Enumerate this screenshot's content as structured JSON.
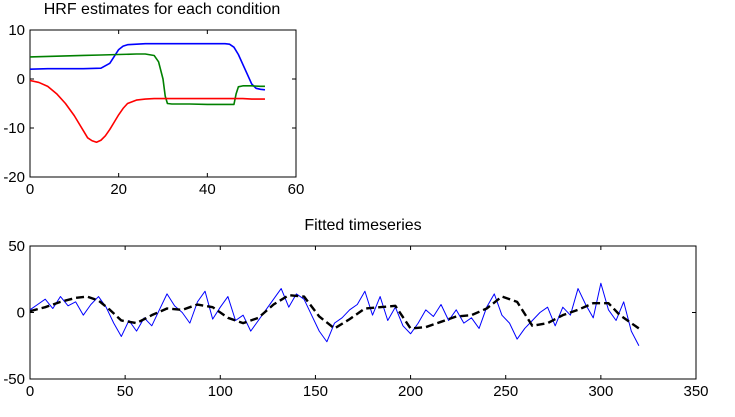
{
  "chart_data": [
    {
      "type": "line",
      "title": "HRF estimates for each condition",
      "xlabel": "",
      "ylabel": "",
      "xlim": [
        0,
        60
      ],
      "ylim": [
        -20,
        10
      ],
      "xticks": [
        0,
        20,
        40,
        60
      ],
      "yticks": [
        -20,
        -10,
        0,
        10
      ],
      "legend": "none",
      "grid": false,
      "series": [
        {
          "color": "#0000ff",
          "x": [
            0,
            4,
            8,
            12,
            16,
            18,
            19,
            20,
            21,
            22,
            24,
            26,
            28,
            30,
            34,
            38,
            42,
            44,
            45,
            46,
            47,
            48,
            49,
            50,
            51,
            52,
            53
          ],
          "y": [
            2,
            2.1,
            2.1,
            2.1,
            2.2,
            3.2,
            4.6,
            6.0,
            6.7,
            7.0,
            7.1,
            7.2,
            7.2,
            7.2,
            7.2,
            7.2,
            7.2,
            7.2,
            7.1,
            6.5,
            5.0,
            3.0,
            1.0,
            -1.0,
            -1.9,
            -2.1,
            -2.2
          ]
        },
        {
          "color": "#008000",
          "x": [
            0,
            4,
            8,
            12,
            16,
            20,
            24,
            26,
            28,
            29,
            30,
            30.5,
            31,
            32,
            36,
            40,
            44,
            46,
            46.5,
            47,
            48,
            50,
            52,
            53
          ],
          "y": [
            4.5,
            4.6,
            4.7,
            4.8,
            4.9,
            5.0,
            5.1,
            5.1,
            4.8,
            3.5,
            0.0,
            -3.5,
            -5.0,
            -5.1,
            -5.1,
            -5.2,
            -5.2,
            -5.2,
            -3.0,
            -1.6,
            -1.4,
            -1.4,
            -1.5,
            -1.5
          ]
        },
        {
          "color": "#ff0000",
          "x": [
            0,
            2,
            4,
            6,
            8,
            10,
            12,
            13,
            14,
            15,
            16,
            17,
            18,
            19,
            20,
            21,
            22,
            24,
            26,
            28,
            32,
            36,
            40,
            44,
            48,
            50,
            52,
            53
          ],
          "y": [
            -0.3,
            -0.7,
            -1.5,
            -3.0,
            -5.0,
            -7.5,
            -10.5,
            -12.0,
            -12.6,
            -12.9,
            -12.5,
            -11.6,
            -10.3,
            -8.8,
            -7.3,
            -6.0,
            -5.0,
            -4.3,
            -4.1,
            -4.0,
            -4.0,
            -4.0,
            -4.0,
            -4.0,
            -4.0,
            -4.1,
            -4.1,
            -4.1
          ]
        }
      ]
    },
    {
      "type": "line",
      "title": "Fitted timeseries",
      "xlabel": "",
      "ylabel": "",
      "xlim": [
        0,
        350
      ],
      "ylim": [
        -50,
        50
      ],
      "xticks": [
        0,
        50,
        100,
        150,
        200,
        250,
        300,
        350
      ],
      "yticks": [
        -50,
        0,
        50
      ],
      "legend": "none",
      "grid": false,
      "series": [
        {
          "color": "#0000ff",
          "x": [
            0,
            4,
            8,
            12,
            16,
            20,
            24,
            28,
            32,
            36,
            40,
            44,
            48,
            52,
            56,
            60,
            64,
            68,
            72,
            76,
            80,
            84,
            88,
            92,
            96,
            100,
            104,
            108,
            112,
            116,
            120,
            124,
            128,
            132,
            136,
            140,
            144,
            148,
            152,
            156,
            160,
            164,
            168,
            172,
            176,
            180,
            184,
            188,
            192,
            196,
            200,
            204,
            208,
            212,
            216,
            220,
            224,
            228,
            232,
            236,
            240,
            244,
            248,
            252,
            256,
            260,
            264,
            268,
            272,
            276,
            280,
            284,
            288,
            292,
            296,
            300,
            304,
            308,
            312,
            316,
            320
          ],
          "y": [
            2,
            6,
            10,
            3,
            12,
            5,
            8,
            -2,
            6,
            12,
            4,
            -8,
            -18,
            -6,
            -14,
            -4,
            -10,
            2,
            14,
            5,
            0,
            -8,
            8,
            16,
            -5,
            4,
            12,
            -6,
            -2,
            -14,
            -6,
            2,
            10,
            18,
            4,
            14,
            10,
            -2,
            -14,
            -22,
            -8,
            -4,
            2,
            6,
            16,
            -2,
            12,
            -6,
            4,
            -10,
            -16,
            -8,
            2,
            -3,
            6,
            -6,
            2,
            -8,
            -4,
            -12,
            4,
            14,
            -2,
            -8,
            -20,
            -12,
            -6,
            0,
            4,
            -10,
            4,
            -2,
            18,
            6,
            -4,
            22,
            2,
            -6,
            8,
            -14,
            -25
          ]
        },
        {
          "color": "#000000",
          "dashed": true,
          "x": [
            0,
            8,
            16,
            24,
            30,
            36,
            42,
            48,
            56,
            64,
            72,
            80,
            88,
            96,
            104,
            112,
            120,
            128,
            136,
            144,
            152,
            160,
            168,
            176,
            184,
            192,
            200,
            208,
            216,
            224,
            232,
            240,
            248,
            256,
            264,
            272,
            280,
            288,
            296,
            304,
            310,
            316,
            320
          ],
          "y": [
            1,
            4,
            8,
            11,
            12,
            9,
            2,
            -6,
            -8,
            -2,
            3,
            2,
            6,
            4,
            -4,
            -8,
            -4,
            6,
            13,
            12,
            -3,
            -12,
            -5,
            3,
            4,
            5,
            -12,
            -11,
            -7,
            -3,
            -2,
            3,
            12,
            8,
            -10,
            -8,
            -2,
            2,
            7,
            7,
            -2,
            -8,
            -12
          ]
        }
      ]
    }
  ]
}
